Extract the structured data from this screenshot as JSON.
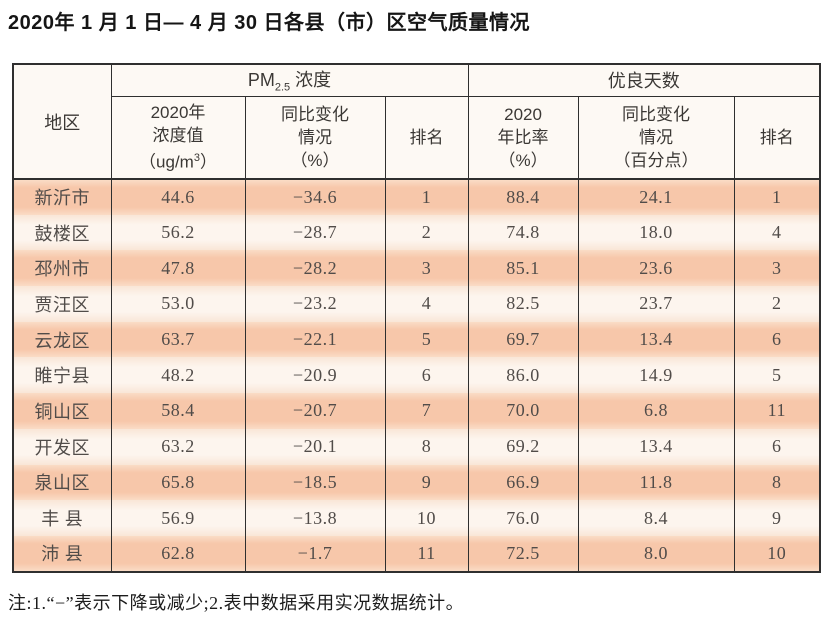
{
  "title": "2020年 1 月 1 日— 4 月 30 日各县（市）区空气质量情况",
  "table": {
    "header": {
      "region": "地区",
      "pm25_group": {
        "prefix": "PM",
        "sub": "2.5",
        "suffix": " 浓度"
      },
      "good_group": "优良天数",
      "pm_value": {
        "line1": "2020年",
        "line2": "浓度值",
        "line3_pre": "（ug/m",
        "line3_sup": "3",
        "line3_post": "）"
      },
      "pm_change": {
        "line1": "同比变化",
        "line2": "情况",
        "line3": "（%）"
      },
      "pm_rank": "排名",
      "good_ratio": {
        "line1": "2020",
        "line2": "年比率",
        "line3": "（%）"
      },
      "good_change": {
        "line1": "同比变化",
        "line2": "情况",
        "line3": "（百分点）"
      },
      "good_rank": "排名"
    },
    "rows": [
      {
        "region": "新沂市",
        "pm_value": "44.6",
        "pm_change": "−34.6",
        "pm_rank": "1",
        "good_ratio": "88.4",
        "good_change": "24.1",
        "good_rank": "1"
      },
      {
        "region": "鼓楼区",
        "pm_value": "56.2",
        "pm_change": "−28.7",
        "pm_rank": "2",
        "good_ratio": "74.8",
        "good_change": "18.0",
        "good_rank": "4"
      },
      {
        "region": "邳州市",
        "pm_value": "47.8",
        "pm_change": "−28.2",
        "pm_rank": "3",
        "good_ratio": "85.1",
        "good_change": "23.6",
        "good_rank": "3"
      },
      {
        "region": "贾汪区",
        "pm_value": "53.0",
        "pm_change": "−23.2",
        "pm_rank": "4",
        "good_ratio": "82.5",
        "good_change": "23.7",
        "good_rank": "2"
      },
      {
        "region": "云龙区",
        "pm_value": "63.7",
        "pm_change": "−22.1",
        "pm_rank": "5",
        "good_ratio": "69.7",
        "good_change": "13.4",
        "good_rank": "6"
      },
      {
        "region": "睢宁县",
        "pm_value": "48.2",
        "pm_change": "−20.9",
        "pm_rank": "6",
        "good_ratio": "86.0",
        "good_change": "14.9",
        "good_rank": "5"
      },
      {
        "region": "铜山区",
        "pm_value": "58.4",
        "pm_change": "−20.7",
        "pm_rank": "7",
        "good_ratio": "70.0",
        "good_change": "6.8",
        "good_rank": "11"
      },
      {
        "region": "开发区",
        "pm_value": "63.2",
        "pm_change": "−20.1",
        "pm_rank": "8",
        "good_ratio": "69.2",
        "good_change": "13.4",
        "good_rank": "6"
      },
      {
        "region": "泉山区",
        "pm_value": "65.8",
        "pm_change": "−18.5",
        "pm_rank": "9",
        "good_ratio": "66.9",
        "good_change": "11.8",
        "good_rank": "8"
      },
      {
        "region": "丰 县",
        "pm_value": "56.9",
        "pm_change": "−13.8",
        "pm_rank": "10",
        "good_ratio": "76.0",
        "good_change": "8.4",
        "good_rank": "9"
      },
      {
        "region": "沛 县",
        "pm_value": "62.8",
        "pm_change": "−1.7",
        "pm_rank": "11",
        "good_ratio": "72.5",
        "good_change": "8.0",
        "good_rank": "10"
      }
    ],
    "row_cell_keys": [
      "region",
      "pm_value",
      "pm_change",
      "pm_rank",
      "good_ratio",
      "good_change",
      "good_rank"
    ]
  },
  "footnote": "注:1.“−”表示下降或减少;2.表中数据采用实况数据统计。",
  "colors": {
    "row_dark": "#f7c7aa",
    "row_light": "#fdf5ee",
    "header_bg": "#fdf9f4",
    "border": "#2f2f2f",
    "body_text": "#514c49",
    "title_text": "#151515"
  }
}
